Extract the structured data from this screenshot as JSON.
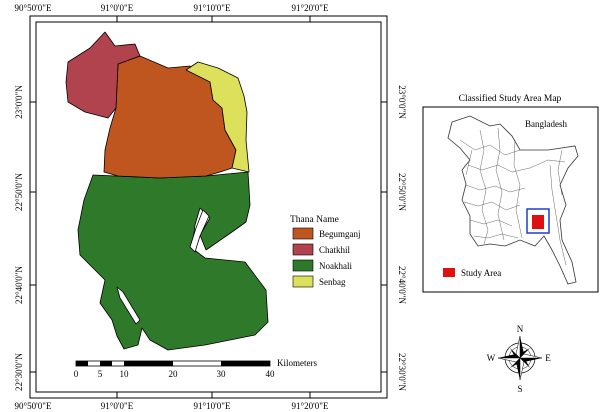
{
  "map": {
    "top_axis_labels": [
      "90°50'0\"E",
      "91°0'0\"E",
      "91°10'0\"E",
      "91°20'0\"E"
    ],
    "bottom_axis_labels": [
      "90°50'0\"E",
      "91°0'0\"E",
      "91°10'0\"E",
      "91°20'0\"E"
    ],
    "left_axis_labels": [
      "23°0'0\"N",
      "22°50'0\"N",
      "22°40'0\"N",
      "22°30'0\"N"
    ],
    "right_axis_labels": [
      "23°0'0\"N",
      "22°50'0\"N",
      "22°40'0\"N",
      "22°30'0\"N"
    ]
  },
  "legend": {
    "title": "Thana Name",
    "items": [
      {
        "label": "Begumganj",
        "color": "#C0561F"
      },
      {
        "label": "Chatkhil",
        "color": "#B1434F"
      },
      {
        "label": "Noakhali",
        "color": "#2F7A2A"
      },
      {
        "label": "Senbag",
        "color": "#DDE05A"
      }
    ]
  },
  "scale_bar": {
    "ticks": [
      "0",
      "5",
      "10",
      "20",
      "30",
      "40"
    ],
    "unit": "Kilometers"
  },
  "inset": {
    "title": "Classified Study Area Map",
    "country_label": "Bangladesh",
    "legend_label": "Study Area",
    "study_area_color": "#E01010",
    "box_color": "#1F3FCC"
  },
  "compass": {
    "n": "N",
    "s": "S",
    "e": "E",
    "w": "W"
  }
}
